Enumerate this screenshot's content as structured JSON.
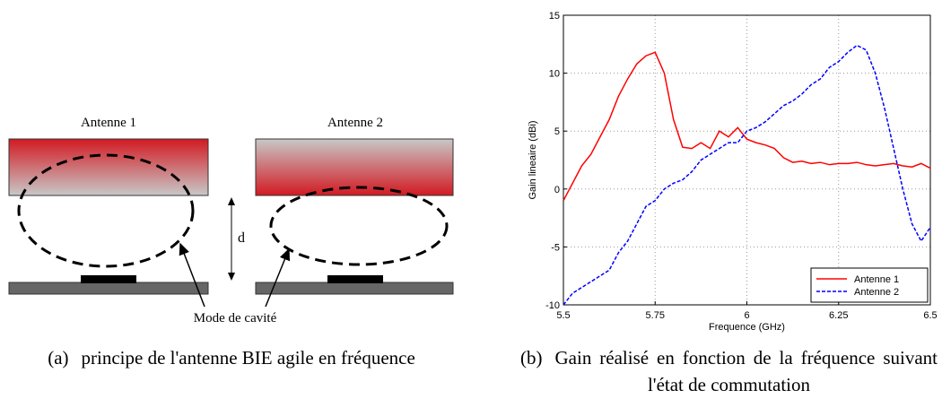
{
  "diagram": {
    "label_left": "Antenne 1",
    "label_right": "Antenne 2",
    "distance": "d",
    "mode": "Mode de cavité"
  },
  "captions": [
    {
      "tag": "(a)",
      "text": "principe de l'antenne BIE agile en fréquence"
    },
    {
      "tag": "(b)",
      "text": "Gain réalisé en fonction de la fréquence suivant l'état de commutation"
    }
  ],
  "chart_data": {
    "type": "line",
    "xlabel": "Frequence (GHz)",
    "ylabel": "Gain lineaire (dBi)",
    "x": [
      5.5,
      5.525,
      5.55,
      5.575,
      5.6,
      5.625,
      5.65,
      5.675,
      5.7,
      5.725,
      5.75,
      5.775,
      5.8,
      5.825,
      5.85,
      5.875,
      5.9,
      5.925,
      5.95,
      5.975,
      6,
      6.025,
      6.05,
      6.075,
      6.1,
      6.125,
      6.15,
      6.175,
      6.2,
      6.225,
      6.25,
      6.275,
      6.3,
      6.325,
      6.35,
      6.375,
      6.4,
      6.425,
      6.45,
      6.475,
      6.5
    ],
    "series": [
      {
        "name": "Antenne 1",
        "color": "#ff0000",
        "dash": false,
        "values": [
          -1,
          0.5,
          2,
          3,
          4.5,
          6,
          8,
          9.5,
          10.8,
          11.5,
          11.8,
          10,
          6,
          3.6,
          3.5,
          4,
          3.5,
          5,
          4.5,
          5.3,
          4.3,
          4,
          3.8,
          3.5,
          2.7,
          2.3,
          2.4,
          2.2,
          2.3,
          2.1,
          2.2,
          2.2,
          2.3,
          2.1,
          2,
          2.1,
          2.2,
          2,
          1.9,
          2.2,
          1.8
        ]
      },
      {
        "name": "Antenne 2",
        "color": "#0000ff",
        "dash": true,
        "values": [
          -10,
          -9,
          -8.5,
          -8,
          -7.5,
          -7,
          -5.5,
          -4.5,
          -3,
          -1.5,
          -1,
          0,
          0.5,
          0.8,
          1.5,
          2.5,
          3,
          3.5,
          4,
          4,
          5,
          5.3,
          5.8,
          6.5,
          7.2,
          7.6,
          8.2,
          9,
          9.5,
          10.5,
          11,
          11.8,
          12.4,
          12,
          10,
          7,
          3.5,
          0,
          -3,
          -4.5,
          -3.3
        ]
      }
    ],
    "xlim": [
      5.5,
      6.5
    ],
    "xticks": [
      5.5,
      5.75,
      6,
      6.25,
      6.5
    ],
    "ylim": [
      -10,
      15
    ],
    "yticks": [
      -10,
      -5,
      0,
      5,
      10,
      15
    ],
    "grid": true,
    "legend": "lower-right"
  }
}
